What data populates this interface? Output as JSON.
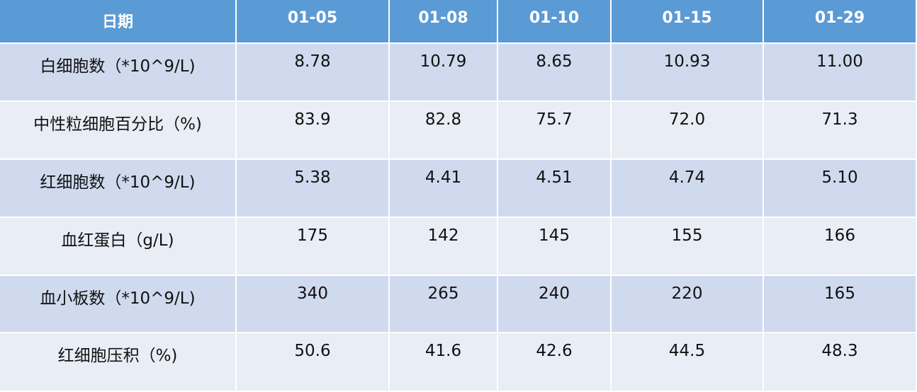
{
  "table": {
    "header": [
      "日期",
      "01-05",
      "01-08",
      "01-10",
      "01-15",
      "01-29"
    ],
    "rows": [
      [
        "白细胞数（*10^9/L)",
        "8.78",
        "10.79",
        "8.65",
        "10.93",
        "11.00"
      ],
      [
        "中性粒细胞百分比（%)",
        "83.9",
        "82.8",
        "75.7",
        "72.0",
        "71.3"
      ],
      [
        "红细胞数（*10^9/L)",
        "5.38",
        "4.41",
        "4.51",
        "4.74",
        "5.10"
      ],
      [
        "血红蛋白（g/L)",
        "175",
        "142",
        "145",
        "155",
        "166"
      ],
      [
        "血小板数（*10^9/L)",
        "340",
        "265",
        "240",
        "220",
        "165"
      ],
      [
        "红细胞压积（%)",
        "50.6",
        "41.6",
        "42.6",
        "44.5",
        "48.3"
      ]
    ]
  }
}
